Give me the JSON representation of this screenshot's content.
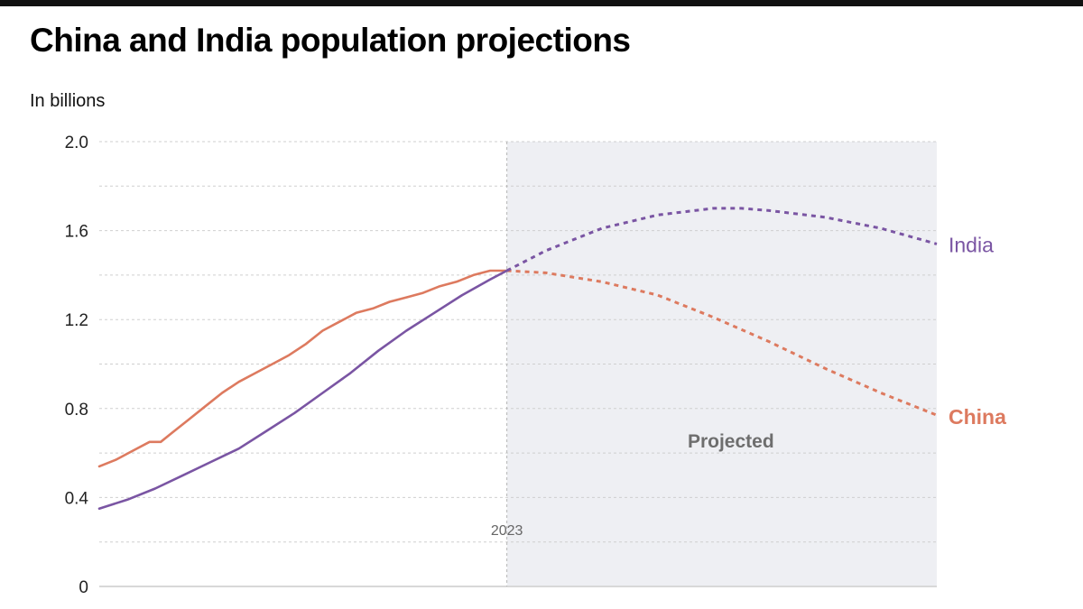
{
  "header": {
    "title": "China and India population projections",
    "subtitle": "In billions"
  },
  "colors": {
    "china": "#dd7a5f",
    "india": "#7a55a3",
    "projected_band": "#eeeff3",
    "grid": "#cfcfcf"
  },
  "chart_data": {
    "type": "line",
    "title": "China and India population projections",
    "ylabel": "In billions",
    "xlabel": "",
    "xlim": [
      1950,
      2100
    ],
    "ylim": [
      0,
      2.0
    ],
    "y_ticks": [
      "0",
      "0.4",
      "0.8",
      "1.2",
      "1.6",
      "2.0"
    ],
    "y_tick_values": [
      0,
      0.4,
      0.8,
      1.2,
      1.6,
      2.0
    ],
    "grid": true,
    "annotations": {
      "divider_year": 2023,
      "divider_label": "2023",
      "projected_label": "Projected"
    },
    "series": [
      {
        "name": "China",
        "label": "China",
        "historical": {
          "x": [
            1950,
            1953,
            1956,
            1959,
            1961,
            1963,
            1966,
            1969,
            1972,
            1975,
            1978,
            1981,
            1984,
            1987,
            1990,
            1993,
            1996,
            1999,
            2002,
            2005,
            2008,
            2011,
            2014,
            2017,
            2020,
            2023
          ],
          "y": [
            0.54,
            0.57,
            0.61,
            0.65,
            0.65,
            0.69,
            0.75,
            0.81,
            0.87,
            0.92,
            0.96,
            1.0,
            1.04,
            1.09,
            1.15,
            1.19,
            1.23,
            1.25,
            1.28,
            1.3,
            1.32,
            1.35,
            1.37,
            1.4,
            1.42,
            1.42
          ]
        },
        "projected": {
          "x": [
            2023,
            2030,
            2040,
            2050,
            2060,
            2070,
            2080,
            2090,
            2100
          ],
          "y": [
            1.42,
            1.41,
            1.37,
            1.31,
            1.21,
            1.1,
            0.98,
            0.87,
            0.77
          ]
        }
      },
      {
        "name": "India",
        "label": "India",
        "historical": {
          "x": [
            1950,
            1955,
            1960,
            1965,
            1970,
            1975,
            1980,
            1985,
            1990,
            1995,
            2000,
            2005,
            2010,
            2015,
            2020,
            2023
          ],
          "y": [
            0.35,
            0.39,
            0.44,
            0.5,
            0.56,
            0.62,
            0.7,
            0.78,
            0.87,
            0.96,
            1.06,
            1.15,
            1.23,
            1.31,
            1.38,
            1.42
          ]
        },
        "projected": {
          "x": [
            2023,
            2030,
            2040,
            2050,
            2060,
            2065,
            2070,
            2080,
            2090,
            2100
          ],
          "y": [
            1.42,
            1.51,
            1.61,
            1.67,
            1.7,
            1.7,
            1.69,
            1.66,
            1.61,
            1.54
          ]
        }
      }
    ]
  }
}
